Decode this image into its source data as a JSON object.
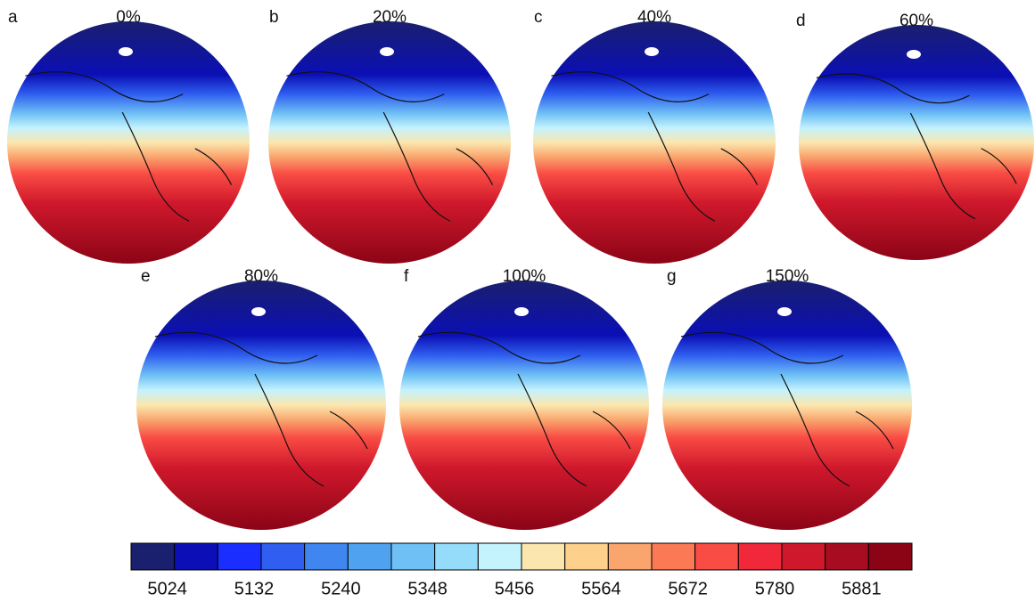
{
  "panels": [
    {
      "letter": "a",
      "title": "0%"
    },
    {
      "letter": "b",
      "title": "20%"
    },
    {
      "letter": "c",
      "title": "40%"
    },
    {
      "letter": "d",
      "title": "60%"
    },
    {
      "letter": "e",
      "title": "80%"
    },
    {
      "letter": "f",
      "title": "100%"
    },
    {
      "letter": "g",
      "title": "150%"
    }
  ],
  "colorbar": {
    "colors": [
      "#1a1f6e",
      "#0b0fb5",
      "#1a2fff",
      "#2f5ef0",
      "#3f86f0",
      "#4fa2f0",
      "#6ec0f5",
      "#94dcfa",
      "#c4f2fd",
      "#fbe7ae",
      "#fdd08b",
      "#f9a56d",
      "#fb7a55",
      "#f94c44",
      "#f0283a",
      "#d0182c",
      "#a80c20",
      "#8b0416"
    ],
    "ticks": [
      5024,
      5132,
      5240,
      5348,
      5456,
      5564,
      5672,
      5780,
      5881
    ]
  }
}
